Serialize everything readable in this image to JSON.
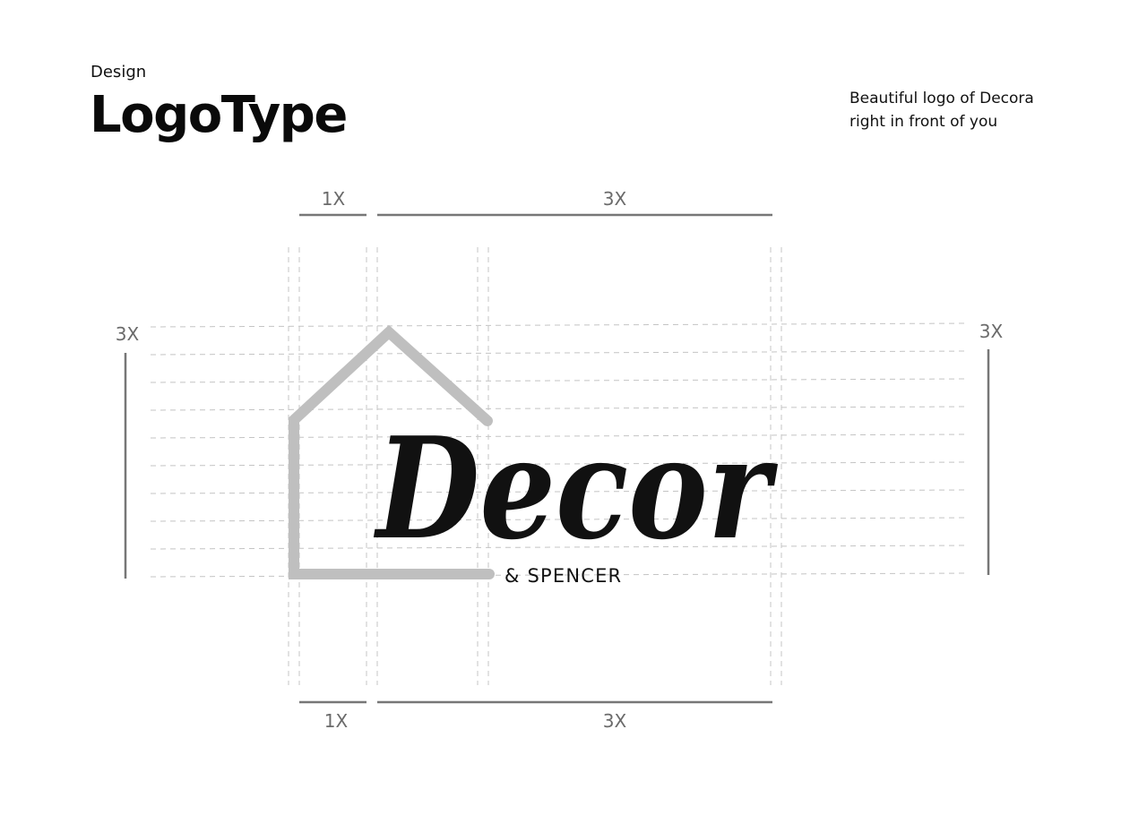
{
  "header": {
    "eyebrow": "Design",
    "title": "LogoType",
    "description": [
      "Beautiful logo of Decora",
      "right in front of you"
    ]
  },
  "logo": {
    "wordmark": "Decor",
    "subline": "& SPENCER",
    "house_color": "#bfbfbf",
    "ink_color": "#111111"
  },
  "measures": {
    "top_small": "1X",
    "top_large": "3X",
    "bottom_small": "1X",
    "bottom_large": "3X",
    "left": "3X",
    "right": "3X"
  },
  "colors": {
    "guide": "#bdbdbd",
    "rule": "#777777",
    "measure_text": "#6b6b6b"
  }
}
